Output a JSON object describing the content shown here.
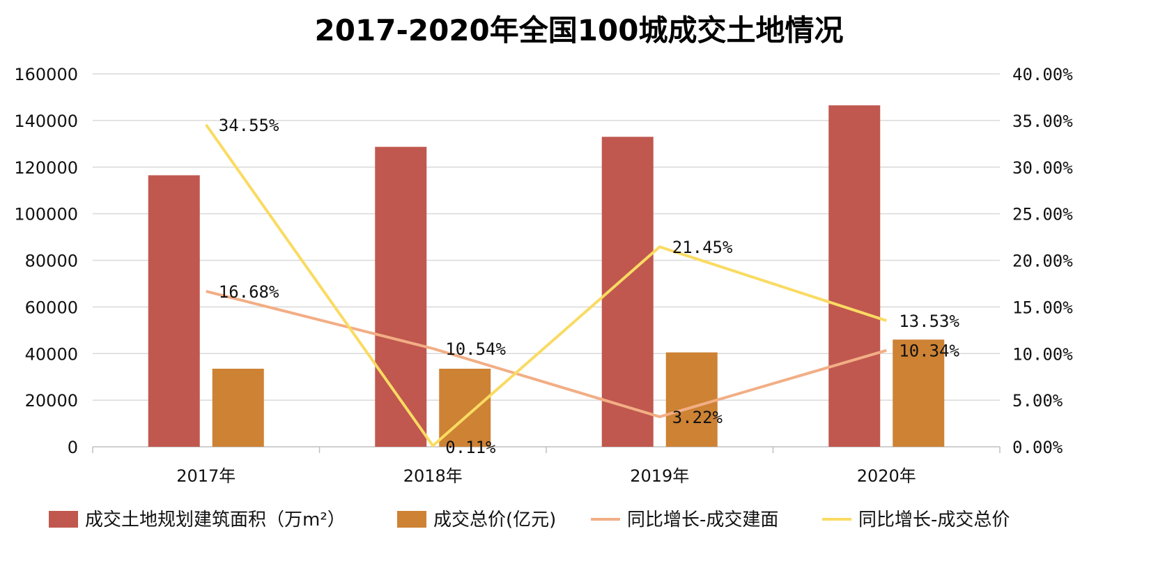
{
  "chart_data": {
    "type": "bar",
    "title": "2017-2020年全国100城成交土地情况",
    "categories": [
      "2017年",
      "2018年",
      "2019年",
      "2020年"
    ],
    "ylim": [
      0,
      160000
    ],
    "y_ticks": [
      "0",
      "20000",
      "40000",
      "60000",
      "80000",
      "100000",
      "120000",
      "140000",
      "160000"
    ],
    "y2lim": [
      0,
      0.4
    ],
    "y2_ticks": [
      "0.00%",
      "5.00%",
      "10.00%",
      "15.00%",
      "20.00%",
      "25.00%",
      "30.00%",
      "35.00%",
      "40.00%"
    ],
    "grid": true,
    "legend_position": "bottom",
    "bar_series": [
      {
        "name": "成交土地规划建筑面积（万m²）",
        "color": "#C0584F",
        "values": [
          116500,
          128700,
          133000,
          146500
        ]
      },
      {
        "name": "成交总价(亿元)",
        "color": "#CD8234",
        "values": [
          33500,
          33500,
          40500,
          46000
        ]
      }
    ],
    "line_series": [
      {
        "name": "同比增长-成交建面",
        "color": "#F2AE85",
        "values": [
          0.1668,
          0.1054,
          0.0322,
          0.1034
        ],
        "labels": [
          "16.68%",
          "10.54%",
          "3.22%",
          "10.34%"
        ]
      },
      {
        "name": "同比增长-成交总价",
        "color": "#FADB62",
        "values": [
          0.3455,
          0.0011,
          0.2145,
          0.1353
        ],
        "labels": [
          "34.55%",
          "0.11%",
          "21.45%",
          "13.53%"
        ]
      }
    ]
  }
}
